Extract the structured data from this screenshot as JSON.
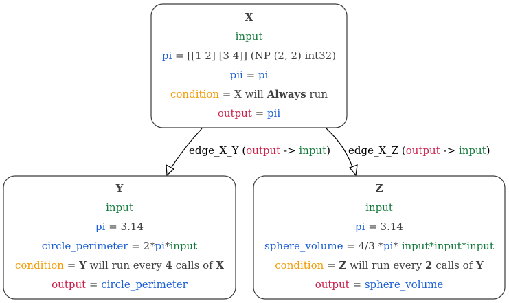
{
  "colors": {
    "green": "#147a3c",
    "blue": "#1a5fd6",
    "orange": "#f59a00",
    "crimson": "#cc1f4a",
    "dark": "#404040",
    "black": "#000000"
  },
  "nodes": {
    "x": {
      "title": "X",
      "input_label": "input",
      "pi_key": "pi",
      "pi_value": " = [[1 2] [3 4]] (NP (2, 2) int32)",
      "pii_key": "pii",
      "pii_eq": " = ",
      "pii_value": "pi",
      "condition_key": "condition",
      "condition_pre": " = X will ",
      "condition_bold": "Always",
      "condition_post": " run",
      "output_key": "output",
      "output_eq": " = ",
      "output_value": "pii"
    },
    "y": {
      "title": "Y",
      "input_label": "input",
      "pi_key": "pi",
      "pi_value": " = 3.14",
      "formula_key": "circle_perimeter",
      "formula_pre": " = 2*",
      "formula_pi": "pi",
      "formula_mid": "*",
      "formula_input": "input",
      "condition_key": "condition",
      "condition_pre": " = ",
      "condition_node": "Y",
      "condition_mid": " will run every ",
      "condition_num": "4",
      "condition_post": " calls of ",
      "condition_src": "X",
      "output_key": "output",
      "output_eq": " = ",
      "output_value": "circle_perimeter"
    },
    "z": {
      "title": "Z",
      "input_label": "input",
      "pi_key": "pi",
      "pi_value": " = 3.14",
      "formula_key": "sphere_volume",
      "formula_pre": " = 4/3 *",
      "formula_pi": "pi",
      "formula_mid": "* ",
      "formula_inputs": "input*input*input",
      "condition_key": "condition",
      "condition_pre": " = ",
      "condition_node": "Z",
      "condition_mid": " will run every ",
      "condition_num": "2",
      "condition_post": " calls of ",
      "condition_src": "Y",
      "output_key": "output",
      "output_eq": " = ",
      "output_value": "sphere_volume"
    }
  },
  "edges": {
    "xy": {
      "name": "edge_X_Y",
      "open": " (",
      "from": "output",
      "arrow": " -> ",
      "to": "input",
      "close": ")"
    },
    "xz": {
      "name": "edge_X_Z",
      "open": " (",
      "from": "output",
      "arrow": " -> ",
      "to": "input",
      "close": ")"
    }
  }
}
